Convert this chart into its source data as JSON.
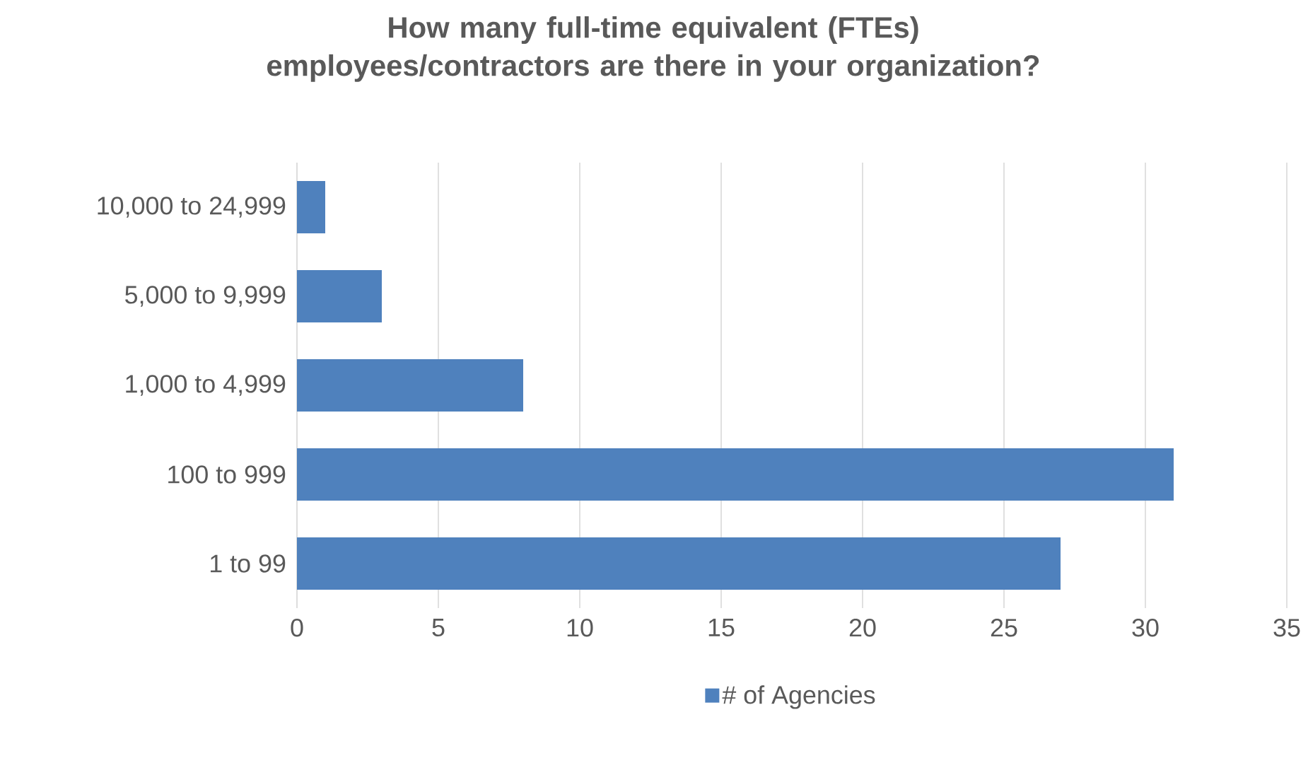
{
  "chart_data": {
    "type": "bar",
    "orientation": "horizontal",
    "title": "How many full-time equivalent (FTEs) employees/contractors are there in your organization?",
    "categories": [
      "10,000 to 24,999",
      "5,000 to 9,999",
      "1,000 to 4,999",
      "100 to 999",
      "1 to 99"
    ],
    "series": [
      {
        "name": "# of Agencies",
        "color": "#4f81bd",
        "values": [
          1,
          3,
          8,
          31,
          27
        ]
      }
    ],
    "xlim": [
      0,
      35
    ],
    "xticks": [
      0,
      5,
      10,
      15,
      20,
      25,
      30,
      35
    ],
    "grid": "x",
    "legend": "bottom"
  }
}
